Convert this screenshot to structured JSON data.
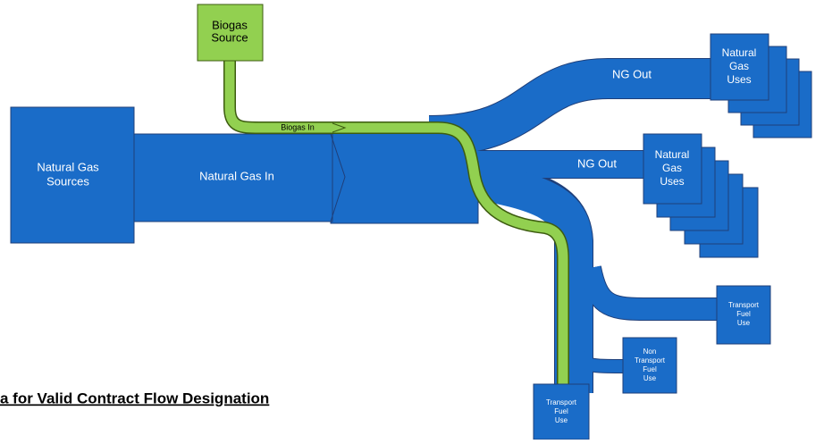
{
  "nodes": {
    "biogas_source": {
      "lines": [
        "Biogas",
        "Source"
      ]
    },
    "natural_gas_sources": {
      "lines": [
        "Natural Gas",
        "Sources"
      ]
    },
    "ng_uses_1": {
      "lines": [
        "Natural",
        "Gas",
        "Uses"
      ]
    },
    "ng_uses_2": {
      "lines": [
        "Natural",
        "Gas",
        "Uses"
      ]
    },
    "transport_use_1": {
      "lines": [
        "Transport",
        "Fuel",
        "Use"
      ]
    },
    "non_transport_use": {
      "lines": [
        "Non",
        "Transport",
        "Fuel",
        "Use"
      ]
    },
    "transport_use_2": {
      "lines": [
        "Transport",
        "Fuel",
        "Use"
      ]
    }
  },
  "flows": {
    "natural_gas_in": "Natural Gas In",
    "biogas_in": "Biogas In",
    "ng_out_1": "NG Out",
    "ng_out_2": "NG Out"
  },
  "heading": "a for Valid Contract Flow Designation"
}
